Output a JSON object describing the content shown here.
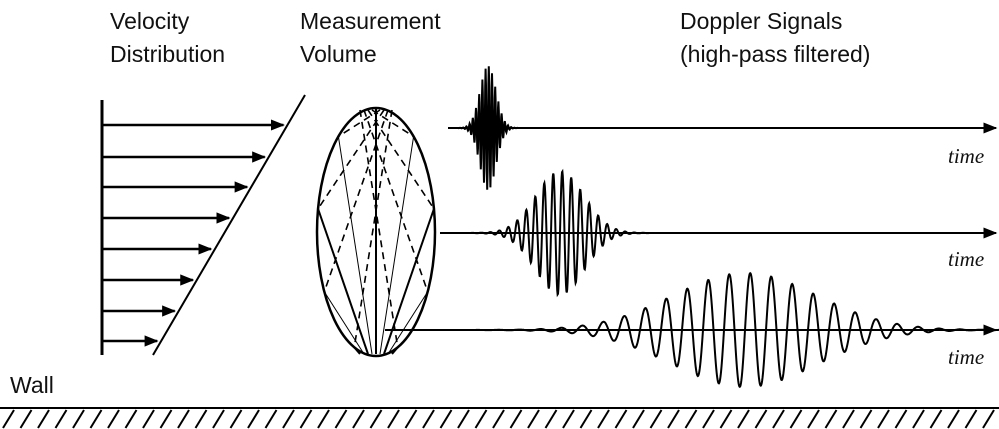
{
  "headings": {
    "velocity_distribution": [
      "Velocity",
      "Distribution"
    ],
    "measurement_volume": [
      "Measurement",
      "Volume"
    ],
    "doppler_signals": [
      "Doppler Signals",
      "(high-pass filtered)"
    ]
  },
  "signals": [
    {
      "axis_label": "time"
    },
    {
      "axis_label": "time"
    },
    {
      "axis_label": "time"
    }
  ],
  "wall": {
    "label": "Wall"
  }
}
